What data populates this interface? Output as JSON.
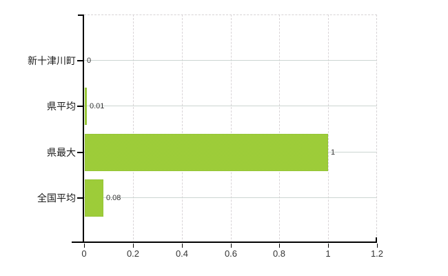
{
  "chart_data": {
    "type": "bar",
    "orientation": "horizontal",
    "title": "",
    "xlabel": "",
    "ylabel": "",
    "categories": [
      "新十津川町",
      "県平均",
      "県最大",
      "全国平均"
    ],
    "values": [
      0,
      0.01,
      1,
      0.08
    ],
    "value_labels": [
      "0",
      "0.01",
      "1",
      "0.08"
    ],
    "x_ticks": [
      0,
      0.2,
      0.4,
      0.6,
      0.8,
      1,
      1.2
    ],
    "x_tick_labels": [
      "0",
      "0.2",
      "0.4",
      "0.6",
      "0.8",
      "1",
      "1.2"
    ],
    "xlim": [
      0,
      1.2
    ],
    "grid": "on",
    "legend": "none"
  },
  "colors": {
    "bar_fill_a": "#86c43e",
    "bar_fill_b": "#b4d434",
    "axis": "#000000",
    "grid_horizontal": "#ccd5d1",
    "grid_vertical": "#d9d4d7",
    "plot_border": "#d6d2d5",
    "category_text": "#1a1a1a",
    "value_text": "#333333",
    "tick_text": "#333333",
    "background": "#ffffff"
  }
}
